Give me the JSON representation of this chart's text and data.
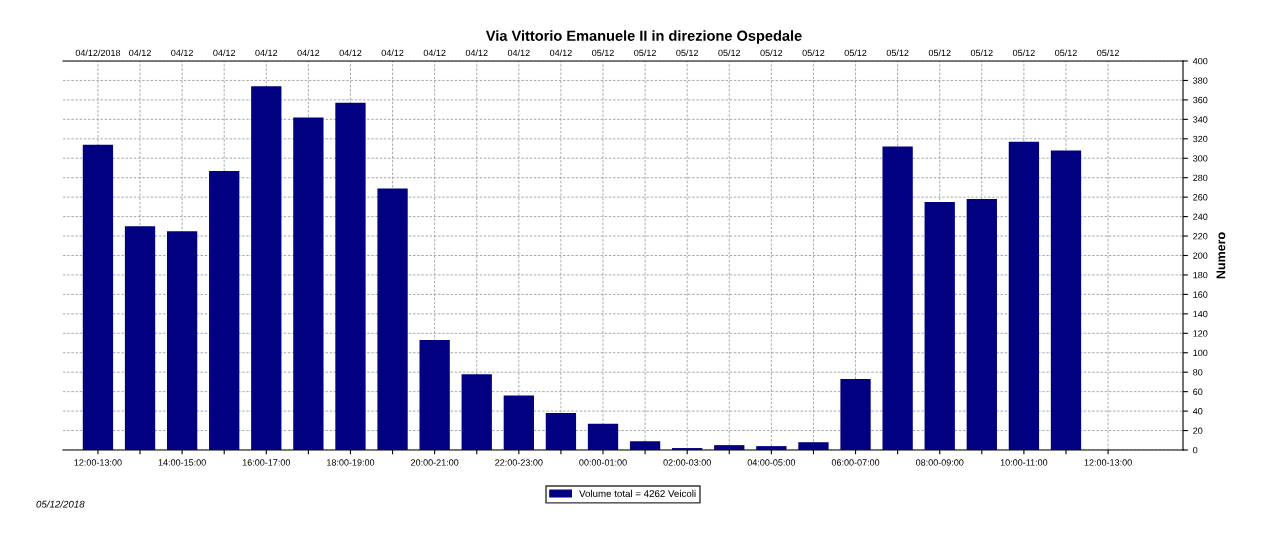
{
  "chart_data": {
    "type": "bar",
    "title": "Via Vittorio Emanuele II in direzione Ospedale",
    "ylabel": "Numero",
    "categories": [
      "12:00-13:00",
      null,
      "14:00-15:00",
      null,
      "16:00-17:00",
      null,
      "18:00-19:00",
      null,
      "20:00-21:00",
      null,
      "22:00-23:00",
      null,
      "00:00-01:00",
      null,
      "02:00-03:00",
      null,
      "04:00-05:00",
      null,
      "06:00-07:00",
      null,
      "08:00-09:00",
      null,
      "10:00-11:00",
      null,
      "12:00-13:00"
    ],
    "series": [
      {
        "name": "Volume total = 4262 Veicoli",
        "color": "#000080",
        "values": [
          314,
          230,
          225,
          287,
          374,
          342,
          357,
          269,
          113,
          78,
          56,
          38,
          27,
          9,
          2,
          5,
          4,
          8,
          73,
          312,
          255,
          258,
          317,
          308,
          null
        ]
      }
    ],
    "ylim": [
      0,
      400
    ],
    "yticks": [
      0,
      20,
      40,
      60,
      80,
      100,
      120,
      140,
      160,
      180,
      200,
      220,
      240,
      260,
      280,
      300,
      320,
      340,
      360,
      380,
      400
    ],
    "grid": true,
    "legend": "bottom",
    "annotations": [
      "05/12/2018",
      "04/12/2018",
      "04/12",
      "04/12",
      "04/12",
      "04/12",
      "04/12",
      "04/12",
      "04/12",
      "04/12",
      "04/12",
      "04/12",
      "04/12",
      "05/12",
      "05/12",
      "05/12",
      "05/12",
      "05/12",
      "05/12",
      "05/12",
      "05/12",
      "05/12",
      "05/12",
      "05/12",
      "05/12",
      "05/12"
    ]
  }
}
